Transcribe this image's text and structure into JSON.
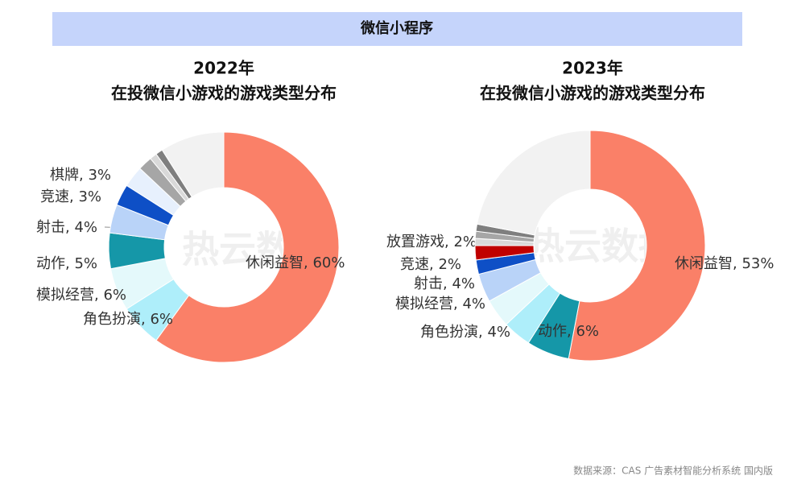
{
  "header": "微信小程序",
  "source": "数据来源：CAS 广告素材智能分析系统 国内版",
  "watermark": "热云数据",
  "chart_data": [
    {
      "type": "donut",
      "title": "2022年",
      "subtitle": "在投微信小游戏的游戏类型分布",
      "values": [
        60,
        6,
        6,
        5,
        4,
        3,
        3,
        2,
        1,
        1,
        9
      ],
      "value_labels": [
        "休闲益智, 60%",
        "角色扮演, 6%",
        "模拟经营, 6%",
        "动作, 5%",
        "射击, 4%",
        "竞速, 3%",
        "棋牌, 3%",
        null,
        null,
        null,
        null
      ],
      "colors": [
        "#fa8068",
        "#aeeefa",
        "#e4f9fb",
        "#1597a8",
        "#b9d3f8",
        "#0e4fc6",
        "#e7f0fd",
        "#a6a6a6",
        "#d9d9d9",
        "#7f7f7f",
        "#f2f2f2"
      ]
    },
    {
      "type": "donut",
      "title": "2023年",
      "subtitle": "在投微信小游戏的游戏类型分布",
      "values": [
        53,
        6,
        4,
        4,
        4,
        2,
        2,
        1,
        1,
        1,
        22
      ],
      "value_labels": [
        "休闲益智, 53%",
        "动作, 6%",
        "角色扮演, 4%",
        "模拟经营, 4%",
        "射击, 4%",
        "竞速, 2%",
        "放置游戏, 2%",
        null,
        null,
        null,
        null
      ],
      "colors": [
        "#fa8068",
        "#1597a8",
        "#aeeefa",
        "#e4f9fb",
        "#b9d3f8",
        "#0e4fc6",
        "#c00000",
        "#d9d9d9",
        "#a6a6a6",
        "#7f7f7f",
        "#f2f2f2"
      ]
    }
  ]
}
